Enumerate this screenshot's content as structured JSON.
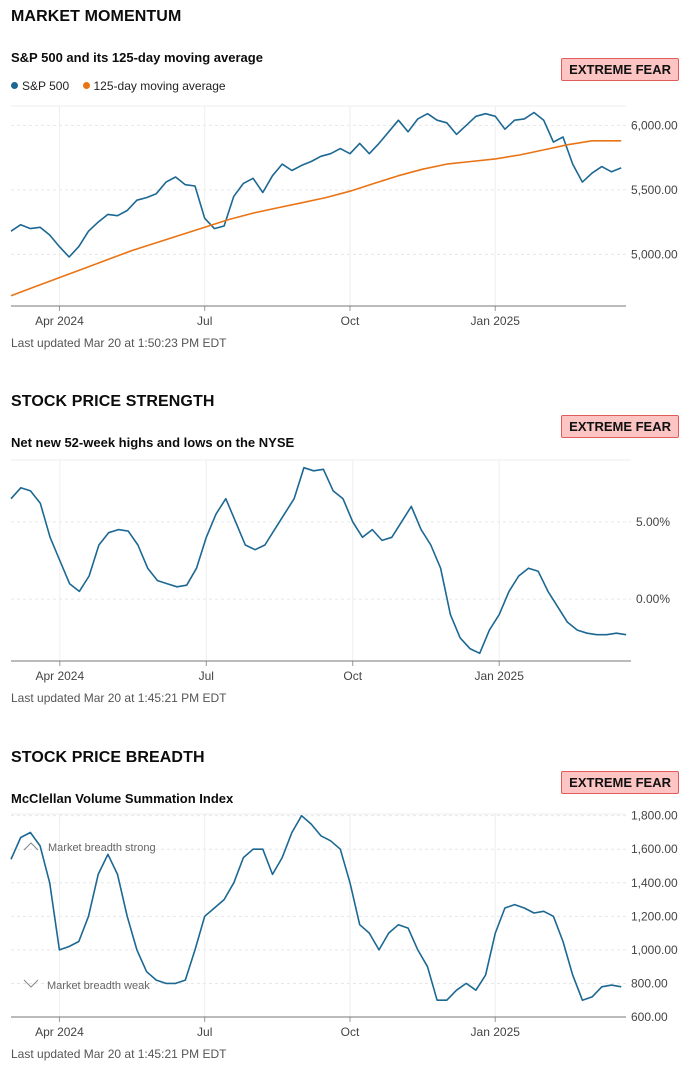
{
  "sections": [
    {
      "title": "MARKET MOMENTUM",
      "subtitle": "S&P 500 and its 125-day moving average",
      "badge": "EXTREME FEAR",
      "updated": "Last updated Mar 20 at 1:50:23 PM EDT",
      "legend": [
        {
          "label": "S&P 500",
          "color": "#1c6893"
        },
        {
          "label": "125-day moving average",
          "color": "#ea7414"
        }
      ]
    },
    {
      "title": "STOCK PRICE STRENGTH",
      "subtitle": "Net new 52-week highs and lows on the NYSE",
      "badge": "EXTREME FEAR",
      "updated": "Last updated Mar 20 at 1:45:21 PM EDT"
    },
    {
      "title": "STOCK PRICE BREADTH",
      "subtitle": "McClellan Volume Summation Index",
      "badge": "EXTREME FEAR",
      "updated": "Last updated Mar 20 at 1:45:21 PM EDT",
      "annotations": {
        "strong": "Market breadth strong",
        "weak": "Market breadth weak"
      }
    }
  ],
  "chart_data": [
    {
      "type": "line",
      "title": "S&P 500 and its 125-day moving average",
      "x_ticks": [
        "Apr 2024",
        "Jul",
        "Oct",
        "Jan 2025"
      ],
      "x_tick_pos": [
        1,
        4,
        7,
        10
      ],
      "x_range": [
        0,
        12.7
      ],
      "y_ticks": [
        5000,
        5500,
        6000
      ],
      "y_tick_labels": [
        "5,000.00",
        "5,500.00",
        "6,000.00"
      ],
      "ylim": [
        4600,
        6150
      ],
      "series": [
        {
          "name": "S&P 500",
          "color": "#1c6893",
          "x": [
            0,
            0.2,
            0.4,
            0.6,
            0.8,
            1.0,
            1.2,
            1.4,
            1.6,
            1.8,
            2.0,
            2.2,
            2.4,
            2.6,
            2.8,
            3.0,
            3.2,
            3.4,
            3.6,
            3.8,
            4.0,
            4.2,
            4.4,
            4.6,
            4.8,
            5.0,
            5.2,
            5.4,
            5.6,
            5.8,
            6.0,
            6.2,
            6.4,
            6.6,
            6.8,
            7.0,
            7.2,
            7.4,
            7.6,
            7.8,
            8.0,
            8.2,
            8.4,
            8.6,
            8.8,
            9.0,
            9.2,
            9.4,
            9.6,
            9.8,
            10.0,
            10.2,
            10.4,
            10.6,
            10.8,
            11.0,
            11.2,
            11.4,
            11.6,
            11.8,
            12.0,
            12.2,
            12.4,
            12.6
          ],
          "values": [
            5180,
            5230,
            5200,
            5210,
            5150,
            5060,
            4980,
            5060,
            5180,
            5250,
            5310,
            5300,
            5340,
            5420,
            5440,
            5470,
            5560,
            5600,
            5540,
            5530,
            5280,
            5200,
            5220,
            5450,
            5550,
            5590,
            5480,
            5610,
            5700,
            5650,
            5690,
            5720,
            5760,
            5780,
            5820,
            5780,
            5860,
            5780,
            5860,
            5950,
            6040,
            5950,
            6050,
            6090,
            6040,
            6020,
            5930,
            6000,
            6070,
            6090,
            6070,
            5970,
            6040,
            6050,
            6100,
            6040,
            5870,
            5910,
            5700,
            5560,
            5630,
            5680,
            5640,
            5670
          ]
        },
        {
          "name": "125-day moving average",
          "color": "#ea7414",
          "x": [
            0,
            0.5,
            1.0,
            1.5,
            2.0,
            2.5,
            3.0,
            3.5,
            4.0,
            4.5,
            5.0,
            5.5,
            6.0,
            6.5,
            7.0,
            7.5,
            8.0,
            8.5,
            9.0,
            9.5,
            10.0,
            10.5,
            11.0,
            11.5,
            12.0,
            12.5,
            12.6
          ],
          "values": [
            4680,
            4750,
            4820,
            4890,
            4960,
            5030,
            5090,
            5150,
            5210,
            5270,
            5320,
            5360,
            5400,
            5440,
            5490,
            5550,
            5610,
            5660,
            5700,
            5720,
            5740,
            5770,
            5810,
            5850,
            5880,
            5880,
            5880
          ]
        }
      ]
    },
    {
      "type": "line",
      "title": "Net new 52-week highs and lows on the NYSE",
      "x_ticks": [
        "Apr 2024",
        "Jul",
        "Oct",
        "Jan 2025"
      ],
      "x_tick_pos": [
        1,
        4,
        7,
        10
      ],
      "x_range": [
        0,
        12.7
      ],
      "y_ticks": [
        0,
        5
      ],
      "y_tick_labels": [
        "0.00%",
        "5.00%"
      ],
      "ylim": [
        -4,
        9
      ],
      "series": [
        {
          "name": "",
          "color": "#1c6893",
          "x": [
            0,
            0.2,
            0.4,
            0.6,
            0.8,
            1.0,
            1.2,
            1.4,
            1.6,
            1.8,
            2.0,
            2.2,
            2.4,
            2.6,
            2.8,
            3.0,
            3.2,
            3.4,
            3.6,
            3.8,
            4.0,
            4.2,
            4.4,
            4.6,
            4.8,
            5.0,
            5.2,
            5.4,
            5.6,
            5.8,
            6.0,
            6.2,
            6.4,
            6.6,
            6.8,
            7.0,
            7.2,
            7.4,
            7.6,
            7.8,
            8.0,
            8.2,
            8.4,
            8.6,
            8.8,
            9.0,
            9.2,
            9.4,
            9.6,
            9.8,
            10.0,
            10.2,
            10.4,
            10.6,
            10.8,
            11.0,
            11.2,
            11.4,
            11.6,
            11.8,
            12.0,
            12.2,
            12.4,
            12.6
          ],
          "values": [
            6.5,
            7.2,
            7.0,
            6.2,
            4.0,
            2.5,
            1.0,
            0.5,
            1.5,
            3.5,
            4.3,
            4.5,
            4.4,
            3.5,
            2.0,
            1.2,
            1.0,
            0.8,
            0.9,
            2.0,
            4.0,
            5.5,
            6.5,
            5.0,
            3.5,
            3.2,
            3.5,
            4.5,
            5.5,
            6.5,
            8.5,
            8.3,
            8.4,
            7.0,
            6.5,
            5.0,
            4.0,
            4.5,
            3.8,
            4.0,
            5.0,
            6.0,
            4.5,
            3.5,
            2.0,
            -1.0,
            -2.5,
            -3.2,
            -3.5,
            -2.0,
            -1.0,
            0.5,
            1.5,
            2.0,
            1.8,
            0.5,
            -0.5,
            -1.5,
            -2.0,
            -2.2,
            -2.3,
            -2.3,
            -2.2,
            -2.3
          ]
        }
      ]
    },
    {
      "type": "line",
      "title": "McClellan Volume Summation Index",
      "x_ticks": [
        "Apr 2024",
        "Jul",
        "Oct",
        "Jan 2025"
      ],
      "x_tick_pos": [
        1,
        4,
        7,
        10
      ],
      "x_range": [
        0,
        12.7
      ],
      "y_ticks": [
        600,
        800,
        1000,
        1200,
        1400,
        1600,
        1800
      ],
      "y_tick_labels": [
        "600.00",
        "800.00",
        "1,000.00",
        "1,200.00",
        "1,400.00",
        "1,600.00",
        "1,800.00"
      ],
      "ylim": [
        600,
        1810
      ],
      "series": [
        {
          "name": "",
          "color": "#1c6893",
          "x": [
            0,
            0.2,
            0.4,
            0.6,
            0.8,
            1.0,
            1.2,
            1.4,
            1.6,
            1.8,
            2.0,
            2.2,
            2.4,
            2.6,
            2.8,
            3.0,
            3.2,
            3.4,
            3.6,
            3.8,
            4.0,
            4.2,
            4.4,
            4.6,
            4.8,
            5.0,
            5.2,
            5.4,
            5.6,
            5.8,
            6.0,
            6.2,
            6.4,
            6.6,
            6.8,
            7.0,
            7.2,
            7.4,
            7.6,
            7.8,
            8.0,
            8.2,
            8.4,
            8.6,
            8.8,
            9.0,
            9.2,
            9.4,
            9.6,
            9.8,
            10.0,
            10.2,
            10.4,
            10.6,
            10.8,
            11.0,
            11.2,
            11.4,
            11.6,
            11.8,
            12.0,
            12.2,
            12.4,
            12.6
          ],
          "values": [
            1540,
            1670,
            1700,
            1620,
            1400,
            1000,
            1020,
            1050,
            1200,
            1450,
            1570,
            1450,
            1200,
            1000,
            870,
            820,
            800,
            800,
            820,
            1000,
            1200,
            1250,
            1300,
            1400,
            1550,
            1600,
            1600,
            1450,
            1550,
            1700,
            1800,
            1750,
            1680,
            1650,
            1600,
            1400,
            1150,
            1100,
            1000,
            1100,
            1150,
            1130,
            1000,
            900,
            700,
            700,
            760,
            800,
            760,
            850,
            1100,
            1250,
            1270,
            1250,
            1220,
            1230,
            1200,
            1050,
            850,
            700,
            720,
            780,
            790,
            780
          ]
        }
      ]
    }
  ]
}
